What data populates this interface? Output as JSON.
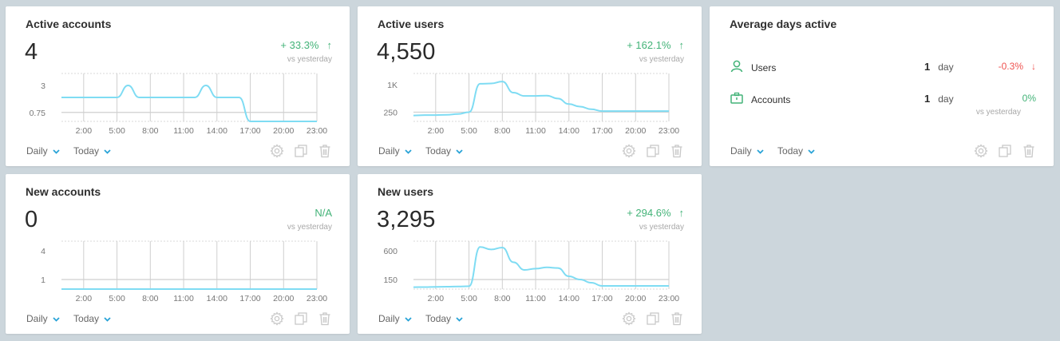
{
  "colors": {
    "accent": "#29a3d7",
    "line": "#7fdcf3",
    "up": "#43b378",
    "down": "#ef5350",
    "muted": "#a8a8a8"
  },
  "common": {
    "x_ticks": [
      "2:00",
      "5:00",
      "8:00",
      "11:00",
      "14:00",
      "17:00",
      "20:00",
      "23:00"
    ],
    "granularity": "Daily",
    "range": "Today",
    "vs_label": "vs yesterday",
    "icons": [
      "gear-icon",
      "duplicate-icon",
      "trash-icon"
    ]
  },
  "cards": {
    "active_accounts": {
      "title": "Active accounts",
      "value": "4",
      "delta": "+ 33.3%",
      "delta_dir": "up"
    },
    "active_users": {
      "title": "Active users",
      "value": "4,550",
      "delta": "+ 162.1%",
      "delta_dir": "up"
    },
    "avg_days": {
      "title": "Average days active",
      "rows": [
        {
          "label": "Users",
          "value": "1",
          "unit": "day",
          "delta": "-0.3%",
          "dir": "down"
        },
        {
          "label": "Accounts",
          "value": "1",
          "unit": "day",
          "delta": "0%",
          "dir": "flat",
          "sub": "vs yesterday"
        }
      ]
    },
    "new_accounts": {
      "title": "New accounts",
      "value": "0",
      "delta": "N/A",
      "delta_dir": "none"
    },
    "new_users": {
      "title": "New users",
      "value": "3,295",
      "delta": "+ 294.6%",
      "delta_dir": "up"
    }
  },
  "chart_data": [
    {
      "type": "line",
      "name": "active_accounts",
      "x": [
        0,
        1,
        2,
        3,
        4,
        5,
        6,
        7,
        8,
        9,
        10,
        11,
        12,
        13,
        14,
        15,
        16,
        17,
        18,
        19,
        20,
        21,
        22,
        23
      ],
      "y_ticks": [
        "3",
        "0.75"
      ],
      "ylim": [
        0,
        4
      ],
      "values": [
        2,
        2,
        2,
        2,
        2,
        2,
        3,
        2,
        2,
        2,
        2,
        2,
        2,
        3,
        2,
        2,
        2,
        0,
        0,
        0,
        0,
        0,
        0,
        0
      ]
    },
    {
      "type": "line",
      "name": "active_users",
      "x": [
        0,
        1,
        2,
        3,
        4,
        5,
        6,
        7,
        8,
        9,
        10,
        11,
        12,
        13,
        14,
        15,
        16,
        17,
        18,
        19,
        20,
        21,
        22,
        23
      ],
      "y_ticks": [
        "1K",
        "250"
      ],
      "ylim": [
        0,
        1300
      ],
      "values": [
        160,
        170,
        170,
        180,
        200,
        250,
        1020,
        1030,
        1080,
        780,
        690,
        690,
        700,
        620,
        470,
        400,
        330,
        280,
        280,
        280,
        280,
        280,
        280,
        280
      ]
    },
    {
      "type": "line",
      "name": "new_accounts",
      "x": [
        0,
        1,
        2,
        3,
        4,
        5,
        6,
        7,
        8,
        9,
        10,
        11,
        12,
        13,
        14,
        15,
        16,
        17,
        18,
        19,
        20,
        21,
        22,
        23
      ],
      "y_ticks": [
        "4",
        "1"
      ],
      "ylim": [
        0,
        5
      ],
      "values": [
        0,
        0,
        0,
        0,
        0,
        0,
        0,
        0,
        0,
        0,
        0,
        0,
        0,
        0,
        0,
        0,
        0,
        0,
        0,
        0,
        0,
        0,
        0,
        0
      ]
    },
    {
      "type": "line",
      "name": "new_users",
      "x": [
        0,
        1,
        2,
        3,
        4,
        5,
        6,
        7,
        8,
        9,
        10,
        11,
        12,
        13,
        14,
        15,
        16,
        17,
        18,
        19,
        20,
        21,
        22,
        23
      ],
      "y_ticks": [
        "600",
        "150"
      ],
      "ylim": [
        0,
        750
      ],
      "values": [
        30,
        32,
        35,
        37,
        40,
        45,
        660,
        620,
        650,
        420,
        300,
        320,
        340,
        330,
        200,
        150,
        100,
        50,
        50,
        50,
        50,
        50,
        50,
        50
      ]
    }
  ]
}
